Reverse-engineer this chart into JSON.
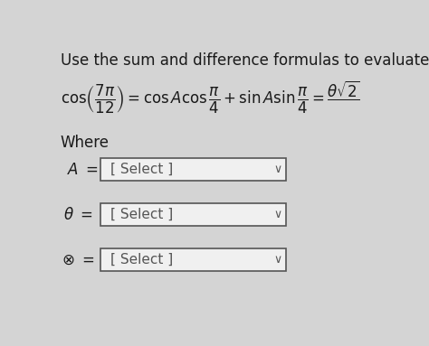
{
  "title": "Use the sum and difference formulas to evaluate",
  "bg_color": "#d4d4d4",
  "where_label": "Where",
  "select_text": "[ Select ]",
  "text_color": "#1a1a1a",
  "box_color": "#f0f0f0",
  "box_border": "#555555",
  "title_fontsize": 12,
  "formula_fontsize": 12,
  "label_fontsize": 12,
  "select_fontsize": 11,
  "where_fontsize": 12
}
